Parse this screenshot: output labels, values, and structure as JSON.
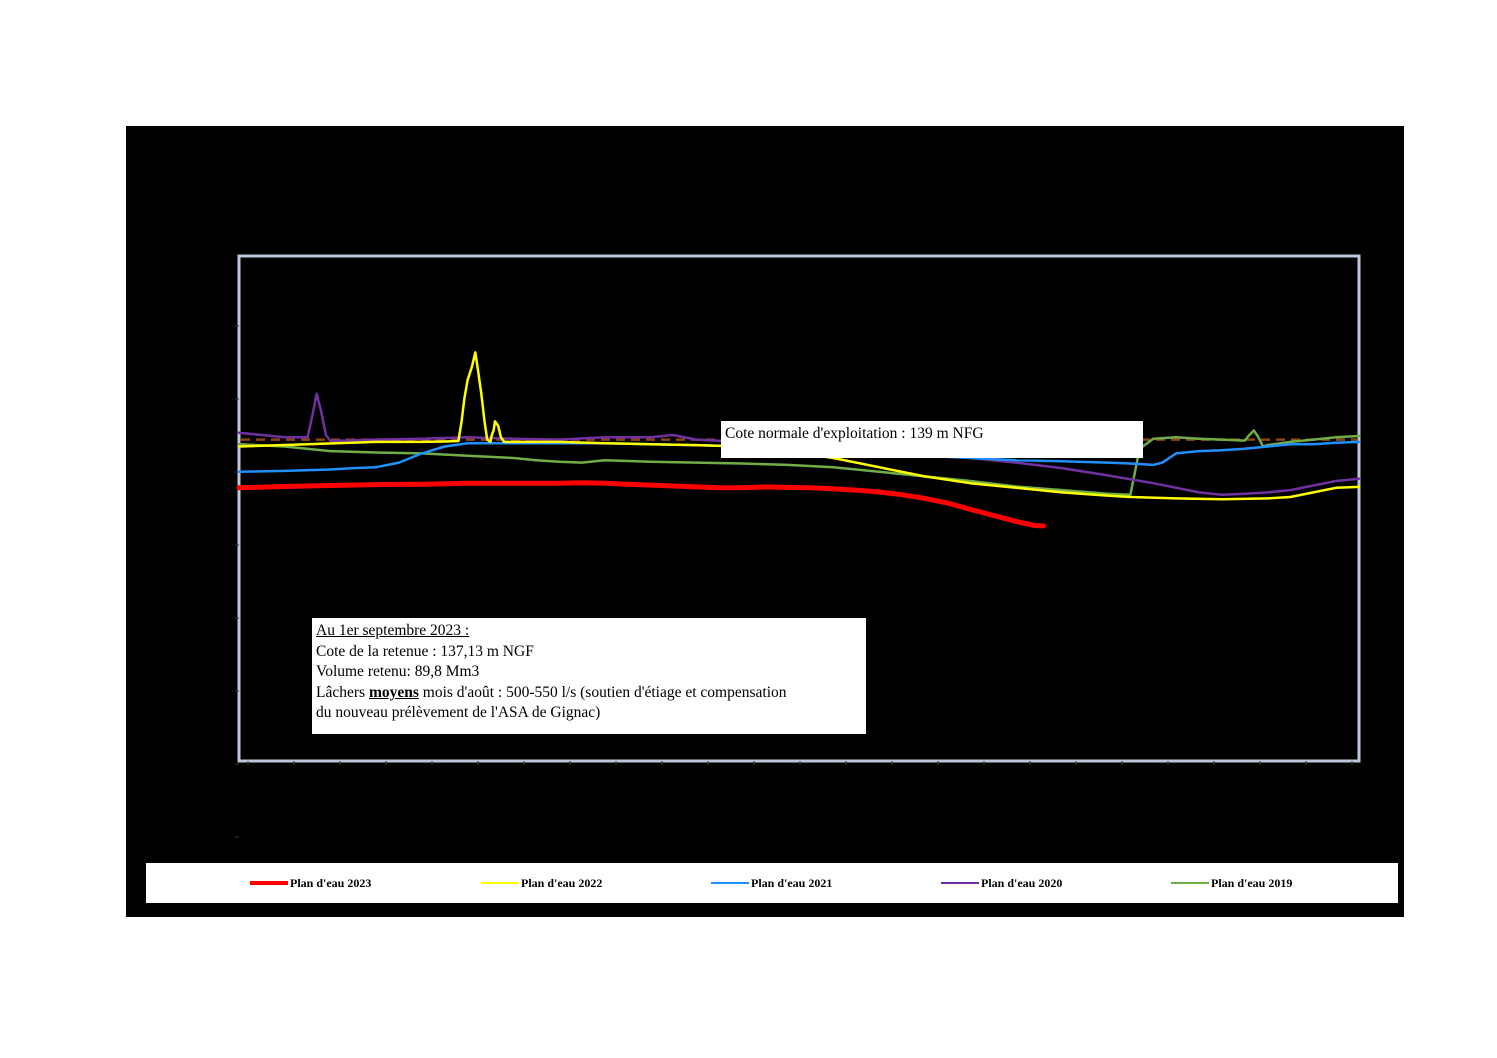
{
  "chart_data": {
    "type": "line",
    "x_range": [
      0,
      245
    ],
    "y_range": [
      132,
      143
    ],
    "reference_line": {
      "label": "Cote normale d'exploitation : 139 m NFG",
      "value": 139,
      "color": "#8B4513"
    },
    "series": [
      {
        "name": "Plan d'eau 2023",
        "color": "#ff0000",
        "points": [
          [
            0,
            137.95
          ],
          [
            10,
            137.98
          ],
          [
            20,
            138.0
          ],
          [
            30,
            138.02
          ],
          [
            40,
            138.03
          ],
          [
            50,
            138.05
          ],
          [
            60,
            138.05
          ],
          [
            70,
            138.05
          ],
          [
            75,
            138.06
          ],
          [
            80,
            138.05
          ],
          [
            85,
            138.03
          ],
          [
            90,
            138.01
          ],
          [
            95,
            137.99
          ],
          [
            100,
            137.97
          ],
          [
            105,
            137.95
          ],
          [
            110,
            137.95
          ],
          [
            115,
            137.97
          ],
          [
            120,
            137.96
          ],
          [
            125,
            137.95
          ],
          [
            130,
            137.93
          ],
          [
            135,
            137.9
          ],
          [
            140,
            137.86
          ],
          [
            145,
            137.8
          ],
          [
            150,
            137.72
          ],
          [
            155,
            137.62
          ],
          [
            160,
            137.48
          ],
          [
            165,
            137.35
          ],
          [
            170,
            137.22
          ],
          [
            174,
            137.13
          ],
          [
            176,
            137.12
          ]
        ]
      },
      {
        "name": "Plan d'eau 2022",
        "color": "#ffff00",
        "points": [
          [
            0,
            138.85
          ],
          [
            15,
            138.9
          ],
          [
            30,
            138.95
          ],
          [
            40,
            138.95
          ],
          [
            45,
            138.96
          ],
          [
            48,
            138.97
          ],
          [
            48.7,
            139.4
          ],
          [
            49.3,
            139.9
          ],
          [
            50.0,
            140.3
          ],
          [
            51,
            140.6
          ],
          [
            51.7,
            140.9
          ],
          [
            52.3,
            140.5
          ],
          [
            53,
            140.0
          ],
          [
            53.7,
            139.4
          ],
          [
            54.3,
            139.0
          ],
          [
            55,
            138.95
          ],
          [
            55.3,
            139.1
          ],
          [
            55.7,
            139.2
          ],
          [
            56,
            139.4
          ],
          [
            56.7,
            139.3
          ],
          [
            57.3,
            139.05
          ],
          [
            58,
            138.95
          ],
          [
            70,
            138.95
          ],
          [
            80,
            138.92
          ],
          [
            90,
            138.9
          ],
          [
            100,
            138.88
          ],
          [
            110,
            138.85
          ],
          [
            120,
            138.75
          ],
          [
            130,
            138.6
          ],
          [
            140,
            138.4
          ],
          [
            150,
            138.2
          ],
          [
            160,
            138.05
          ],
          [
            170,
            137.95
          ],
          [
            180,
            137.85
          ],
          [
            190,
            137.78
          ],
          [
            195,
            137.75
          ],
          [
            205,
            137.72
          ],
          [
            215,
            137.7
          ],
          [
            225,
            137.72
          ],
          [
            230,
            137.75
          ],
          [
            235,
            137.85
          ],
          [
            240,
            137.95
          ],
          [
            245,
            137.97
          ]
        ]
      },
      {
        "name": "Plan d'eau 2021",
        "color": "#1e90ff",
        "points": [
          [
            0,
            138.3
          ],
          [
            10,
            138.32
          ],
          [
            20,
            138.35
          ],
          [
            25,
            138.38
          ],
          [
            30,
            138.4
          ],
          [
            35,
            138.5
          ],
          [
            40,
            138.7
          ],
          [
            45,
            138.85
          ],
          [
            50,
            138.92
          ],
          [
            60,
            138.92
          ],
          [
            70,
            138.92
          ],
          [
            80,
            138.92
          ],
          [
            90,
            138.9
          ],
          [
            100,
            138.88
          ],
          [
            110,
            138.85
          ],
          [
            120,
            138.8
          ],
          [
            130,
            138.75
          ],
          [
            140,
            138.7
          ],
          [
            150,
            138.65
          ],
          [
            160,
            138.6
          ],
          [
            170,
            138.55
          ],
          [
            180,
            138.53
          ],
          [
            190,
            138.5
          ],
          [
            195,
            138.48
          ],
          [
            200,
            138.45
          ],
          [
            202,
            138.5
          ],
          [
            205,
            138.7
          ],
          [
            210,
            138.75
          ],
          [
            215,
            138.77
          ],
          [
            220,
            138.8
          ],
          [
            225,
            138.85
          ],
          [
            230,
            138.9
          ],
          [
            235,
            138.9
          ],
          [
            240,
            138.93
          ],
          [
            245,
            138.95
          ]
        ]
      },
      {
        "name": "Plan d'eau 2020",
        "color": "#7030a0",
        "points": [
          [
            0,
            139.15
          ],
          [
            5,
            139.1
          ],
          [
            10,
            139.05
          ],
          [
            15,
            139.05
          ],
          [
            16,
            139.5
          ],
          [
            17,
            140.0
          ],
          [
            18,
            139.6
          ],
          [
            19,
            139.1
          ],
          [
            20,
            138.97
          ],
          [
            30,
            139.0
          ],
          [
            40,
            139.02
          ],
          [
            50,
            139.05
          ],
          [
            60,
            139.02
          ],
          [
            70,
            139.0
          ],
          [
            80,
            139.05
          ],
          [
            90,
            139.05
          ],
          [
            95,
            139.1
          ],
          [
            100,
            139.0
          ],
          [
            110,
            138.95
          ],
          [
            120,
            138.9
          ],
          [
            130,
            138.85
          ],
          [
            140,
            138.8
          ],
          [
            150,
            138.7
          ],
          [
            160,
            138.6
          ],
          [
            170,
            138.5
          ],
          [
            180,
            138.38
          ],
          [
            190,
            138.22
          ],
          [
            200,
            138.05
          ],
          [
            210,
            137.85
          ],
          [
            215,
            137.8
          ],
          [
            220,
            137.82
          ],
          [
            225,
            137.85
          ],
          [
            230,
            137.9
          ],
          [
            235,
            138.0
          ],
          [
            240,
            138.1
          ],
          [
            245,
            138.15
          ]
        ]
      },
      {
        "name": "Plan d'eau 2019",
        "color": "#70ad47",
        "points": [
          [
            0,
            138.9
          ],
          [
            10,
            138.85
          ],
          [
            20,
            138.75
          ],
          [
            30,
            138.72
          ],
          [
            40,
            138.7
          ],
          [
            50,
            138.65
          ],
          [
            60,
            138.6
          ],
          [
            65,
            138.55
          ],
          [
            70,
            138.52
          ],
          [
            75,
            138.5
          ],
          [
            80,
            138.55
          ],
          [
            90,
            138.52
          ],
          [
            100,
            138.5
          ],
          [
            110,
            138.48
          ],
          [
            120,
            138.45
          ],
          [
            130,
            138.4
          ],
          [
            140,
            138.3
          ],
          [
            150,
            138.2
          ],
          [
            160,
            138.1
          ],
          [
            170,
            137.98
          ],
          [
            180,
            137.9
          ],
          [
            190,
            137.82
          ],
          [
            195,
            137.8
          ],
          [
            197,
            138.8
          ],
          [
            200,
            139.02
          ],
          [
            205,
            139.05
          ],
          [
            210,
            139.02
          ],
          [
            215,
            139.0
          ],
          [
            220,
            138.98
          ],
          [
            221,
            139.1
          ],
          [
            222,
            139.2
          ],
          [
            223,
            139.05
          ],
          [
            224,
            138.85
          ],
          [
            225,
            138.88
          ],
          [
            230,
            138.95
          ],
          [
            235,
            139.0
          ],
          [
            240,
            139.05
          ],
          [
            245,
            139.08
          ]
        ]
      }
    ],
    "legend": {
      "position": "bottom",
      "entries": [
        "Plan d'eau 2023",
        "Plan d'eau 2022",
        "Plan d'eau 2021",
        "Plan d'eau 2020",
        "Plan d'eau 2019"
      ]
    }
  },
  "annotations": {
    "cote_normale": "Cote normale d'exploitation : 139 m NFG",
    "info_title": "Au 1er septembre 2023 :",
    "info_line1": "Cote de la retenue : 137,13 m NGF",
    "info_line2": "Volume retenu: 89,8 Mm3",
    "info_line3_pre": "Lâchers ",
    "info_line3_bold": "moyens",
    "info_line3_post": " mois d'août : 500-550 l/s (soutien d'étiage et compensation",
    "info_line4": "du nouveau prélèvement de l'ASA de Gignac)"
  },
  "colors": {
    "panel_background": "#000000",
    "plot_border": "#c0c8dc",
    "page_background": "#ffffff"
  }
}
